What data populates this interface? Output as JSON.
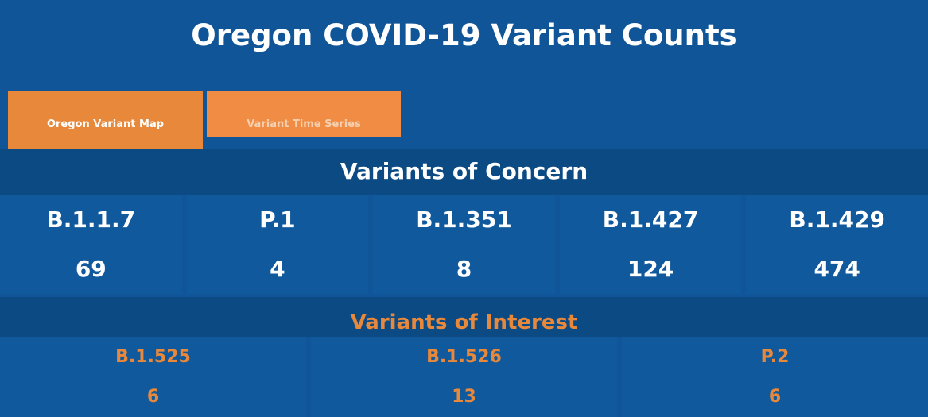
{
  "title": "Oregon COVID-19 Variant Counts",
  "tabs": [
    "Oregon Variant Map",
    "Variant Time Series"
  ],
  "concern": {
    "heading": "Variants of Concern",
    "items": [
      {
        "name": "B.1.1.7",
        "count": 69
      },
      {
        "name": "P.1",
        "count": 4
      },
      {
        "name": "B.1.351",
        "count": 8
      },
      {
        "name": "B.1.427",
        "count": 124
      },
      {
        "name": "B.1.429",
        "count": 474
      }
    ]
  },
  "interest": {
    "heading": "Variants of Interest",
    "items": [
      {
        "name": "B.1.525",
        "count": 6
      },
      {
        "name": "B.1.526",
        "count": 13
      },
      {
        "name": "P.2",
        "count": 6
      }
    ]
  }
}
